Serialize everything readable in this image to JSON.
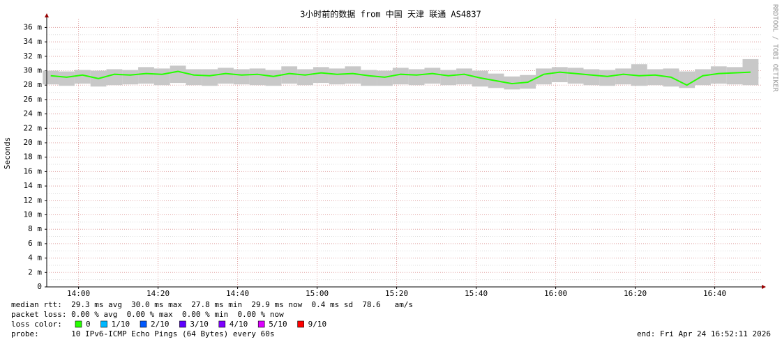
{
  "chart_data": {
    "type": "smokeping",
    "title": "3小时前的数据 from 中国 天津 联通 AS4837",
    "y_label": "Seconds",
    "watermark": "RRDTOOL / TOBI OETIKER",
    "xlim": [
      "13:52",
      "16:52"
    ],
    "xticks": [
      "14:00",
      "14:20",
      "14:40",
      "15:00",
      "15:20",
      "15:40",
      "16:00",
      "16:20",
      "16:40"
    ],
    "ylim": [
      0,
      37.2
    ],
    "yticks": [
      0,
      {
        "value": 2,
        "label": "2 m"
      },
      {
        "value": 4,
        "label": "4 m"
      },
      {
        "value": 6,
        "label": "6 m"
      },
      {
        "value": 8,
        "label": "8 m"
      },
      {
        "value": 10,
        "label": "10 m"
      },
      {
        "value": 12,
        "label": "12 m"
      },
      {
        "value": 14,
        "label": "14 m"
      },
      {
        "value": 16,
        "label": "16 m"
      },
      {
        "value": 18,
        "label": "18 m"
      },
      {
        "value": 20,
        "label": "20 m"
      },
      {
        "value": 22,
        "label": "22 m"
      },
      {
        "value": 24,
        "label": "24 m"
      },
      {
        "value": 26,
        "label": "26 m"
      },
      {
        "value": 28,
        "label": "28 m"
      },
      {
        "value": 30,
        "label": "30 m"
      },
      {
        "value": 32,
        "label": "32 m"
      },
      {
        "value": 34,
        "label": "34 m"
      },
      {
        "value": 36,
        "label": "36 m"
      }
    ],
    "grid": true,
    "x": [
      "13:53",
      "13:57",
      "14:01",
      "14:05",
      "14:09",
      "14:13",
      "14:17",
      "14:21",
      "14:25",
      "14:29",
      "14:33",
      "14:37",
      "14:41",
      "14:45",
      "14:49",
      "14:53",
      "14:57",
      "15:01",
      "15:05",
      "15:09",
      "15:13",
      "15:17",
      "15:21",
      "15:25",
      "15:29",
      "15:33",
      "15:37",
      "15:41",
      "15:45",
      "15:49",
      "15:53",
      "15:57",
      "16:01",
      "16:05",
      "16:09",
      "16:13",
      "16:17",
      "16:21",
      "16:25",
      "16:29",
      "16:33",
      "16:37",
      "16:41",
      "16:45",
      "16:49"
    ],
    "median": {
      "color": "#26ff00",
      "values": [
        29.3,
        29.1,
        29.4,
        28.9,
        29.5,
        29.4,
        29.6,
        29.5,
        29.9,
        29.4,
        29.3,
        29.6,
        29.4,
        29.5,
        29.2,
        29.6,
        29.4,
        29.7,
        29.5,
        29.6,
        29.3,
        29.1,
        29.5,
        29.4,
        29.6,
        29.3,
        29.5,
        29.0,
        28.6,
        28.2,
        28.4,
        29.5,
        29.8,
        29.6,
        29.4,
        29.2,
        29.5,
        29.3,
        29.4,
        29.1,
        28.0,
        29.3,
        29.6,
        29.7,
        29.8
      ]
    },
    "range": {
      "color": "#c8c8c8",
      "low": [
        28.1,
        27.9,
        28.2,
        27.8,
        28.0,
        28.1,
        28.2,
        28.0,
        28.3,
        28.0,
        27.9,
        28.2,
        28.1,
        28.0,
        27.9,
        28.2,
        28.0,
        28.3,
        28.1,
        28.2,
        27.9,
        27.9,
        28.1,
        28.0,
        28.2,
        28.0,
        28.1,
        27.8,
        27.6,
        27.4,
        27.5,
        28.1,
        28.4,
        28.2,
        28.0,
        27.9,
        28.1,
        27.9,
        28.0,
        27.8,
        27.6,
        28.0,
        28.2,
        28.1,
        28.0
      ],
      "high": [
        30.0,
        29.9,
        30.1,
        30.0,
        30.2,
        30.1,
        30.5,
        30.3,
        30.7,
        30.2,
        30.2,
        30.4,
        30.2,
        30.3,
        30.1,
        30.6,
        30.2,
        30.5,
        30.3,
        30.6,
        30.1,
        30.0,
        30.4,
        30.2,
        30.4,
        30.1,
        30.3,
        30.0,
        29.6,
        29.2,
        29.4,
        30.3,
        30.5,
        30.4,
        30.2,
        30.1,
        30.3,
        30.9,
        30.2,
        30.3,
        29.9,
        30.2,
        30.6,
        30.5,
        31.6
      ]
    },
    "stats": [
      "median rtt:  29.3 ms avg  30.0 ms max  27.8 ms min  29.9 ms now  0.4 ms sd  78.6   am/s",
      "packet loss: 0.00 % avg  0.00 % max  0.00 % min  0.00 % now"
    ],
    "loss_label": "loss color:",
    "loss_colors": [
      {
        "name": "0",
        "color": "#26ff00"
      },
      {
        "name": "1/10",
        "color": "#00b8ff"
      },
      {
        "name": "2/10",
        "color": "#0059ff"
      },
      {
        "name": "3/10",
        "color": "#5e00ff"
      },
      {
        "name": "4/10",
        "color": "#7e00ff"
      },
      {
        "name": "5/10",
        "color": "#dd00ff"
      },
      {
        "name": "9/10",
        "color": "#ff0000"
      }
    ],
    "probe": "probe:       10 IPv6-ICMP Echo Pings (64 Bytes) every 60s",
    "end": "end: Fri Apr 24 16:52:11 2026"
  }
}
